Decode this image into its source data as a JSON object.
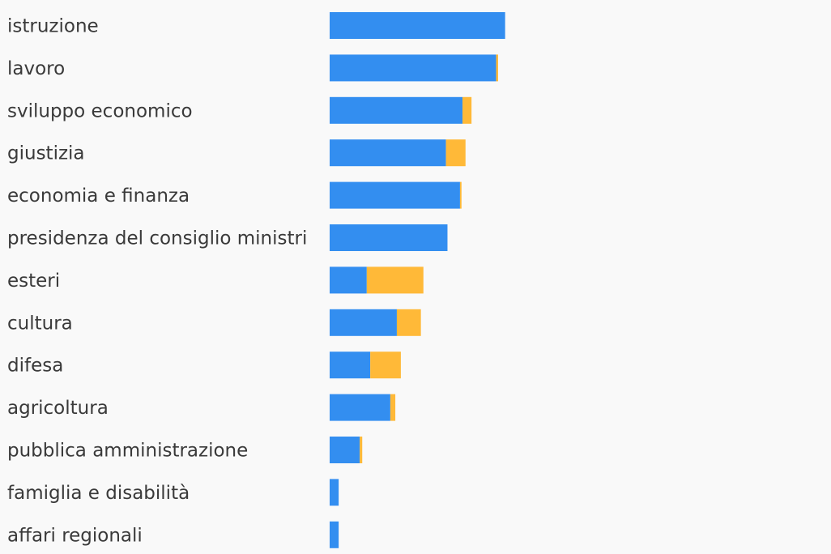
{
  "chart_data": {
    "type": "bar",
    "orientation": "horizontal",
    "stacked": true,
    "title": "",
    "xlabel": "",
    "ylabel": "",
    "grid": false,
    "legend": "none",
    "xlim": [
      0,
      100
    ],
    "categories": [
      "istruzione",
      "lavoro",
      "sviluppo economico",
      "giustizia",
      "economia e finanza",
      "presidenza del consiglio ministri",
      "esteri",
      "cultura",
      "difesa",
      "agricoltura",
      "pubblica amministrazione",
      "famiglia e disabilità",
      "affari regionali"
    ],
    "series": [
      {
        "color": "#338ef0",
        "values": [
          35.0,
          33.2,
          26.5,
          23.2,
          26.0,
          23.5,
          7.4,
          13.4,
          8.1,
          12.1,
          6.0,
          1.8,
          1.8
        ]
      },
      {
        "color": "#ffb938",
        "values": [
          0,
          0.4,
          1.8,
          3.9,
          0.3,
          0,
          11.3,
          4.8,
          6.1,
          1.0,
          0.5,
          0,
          0
        ]
      }
    ]
  }
}
